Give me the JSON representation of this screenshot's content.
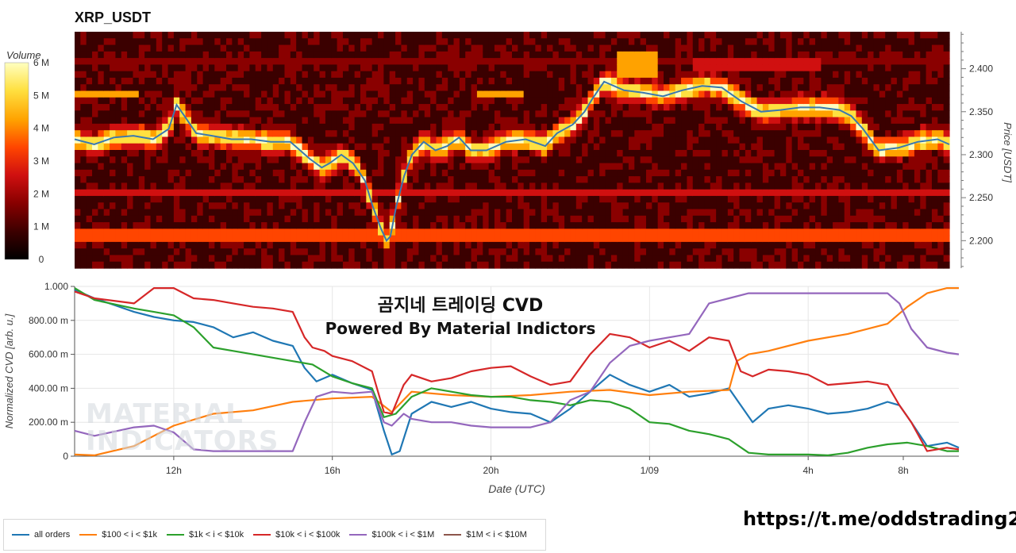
{
  "page": {
    "title": "XRP_USDT",
    "overlay_line1": "곰지네 트레이딩 CVD",
    "overlay_line2": "Powered By Material Indictors",
    "watermark_line1": "MATERIAL",
    "watermark_line2": "INDICATORS",
    "link": "https://t.me/oddstrading2"
  },
  "chart_data": [
    {
      "type": "heatmap",
      "title": "XRP_USDT",
      "ylabel": "Price [USDT]",
      "colorbar_title": "Volume",
      "colorbar_ticks": [
        "0",
        "1 M",
        "2 M",
        "3 M",
        "4 M",
        "5 M",
        "6 M"
      ],
      "colorbar_range": [
        0,
        6000000
      ],
      "ylim": [
        2.168,
        2.443
      ],
      "yticks": [
        "2.200",
        "2.250",
        "2.300",
        "2.350",
        "2.400"
      ],
      "colormap": [
        "#000000",
        "#3b0000",
        "#8a0000",
        "#d01010",
        "#ff4500",
        "#ffa200",
        "#ffe040",
        "#ffffc0"
      ],
      "price_line_color": "#3a78b0",
      "price_line": {
        "t_hours": [
          9.5,
          10.0,
          10.5,
          11.0,
          11.5,
          11.9,
          12.1,
          12.3,
          12.6,
          13.0,
          13.5,
          14.0,
          14.5,
          15.0,
          15.5,
          15.8,
          16.0,
          16.3,
          16.6,
          16.9,
          17.1,
          17.3,
          17.45,
          17.55,
          17.7,
          17.9,
          18.1,
          18.4,
          18.7,
          19.0,
          19.3,
          19.6,
          20.0,
          20.5,
          21.0,
          21.5,
          21.8,
          22.2,
          22.5,
          22.7,
          23.0,
          23.5,
          24.0,
          24.5,
          25.0,
          25.5,
          26.0,
          26.5,
          27.0,
          27.5,
          28.0,
          28.5,
          29.0,
          29.3,
          29.6,
          30.0,
          30.5,
          31.0,
          31.5,
          31.8
        ],
        "price": [
          2.318,
          2.312,
          2.32,
          2.322,
          2.318,
          2.33,
          2.358,
          2.345,
          2.325,
          2.322,
          2.318,
          2.318,
          2.315,
          2.315,
          2.295,
          2.285,
          2.29,
          2.3,
          2.29,
          2.27,
          2.24,
          2.215,
          2.2,
          2.205,
          2.24,
          2.275,
          2.3,
          2.315,
          2.305,
          2.31,
          2.32,
          2.305,
          2.305,
          2.315,
          2.318,
          2.31,
          2.325,
          2.335,
          2.35,
          2.365,
          2.385,
          2.375,
          2.372,
          2.368,
          2.375,
          2.38,
          2.378,
          2.362,
          2.35,
          2.352,
          2.355,
          2.355,
          2.352,
          2.345,
          2.33,
          2.305,
          2.308,
          2.315,
          2.318,
          2.312
        ]
      }
    },
    {
      "type": "line",
      "xlabel": "Date (UTC)",
      "ylabel": "Normalized CVD [arb. u.]",
      "xlim": [
        9.5,
        31.8
      ],
      "ylim": [
        0,
        1000
      ],
      "x_ticks": [
        {
          "t": 12,
          "label": "12h"
        },
        {
          "t": 16,
          "label": "16h"
        },
        {
          "t": 20,
          "label": "20h"
        },
        {
          "t": 24,
          "label": "1/09"
        },
        {
          "t": 28,
          "label": "4h"
        },
        {
          "t": 32,
          "label": "8h"
        }
      ],
      "y_ticks": [
        "0",
        "200.00 m",
        "400.00 m",
        "600.00 m",
        "800.00 m",
        "1.000"
      ],
      "grid": true,
      "series": [
        {
          "name": "all orders",
          "color": "#1f77b4",
          "x": [
            9.5,
            10.0,
            10.5,
            11.0,
            11.5,
            12.0,
            12.5,
            13.0,
            13.5,
            14.0,
            14.5,
            15.0,
            15.3,
            15.6,
            16.0,
            16.5,
            17.0,
            17.3,
            17.5,
            17.7,
            18.0,
            18.5,
            19.0,
            19.5,
            20.0,
            20.5,
            21.0,
            21.5,
            22.0,
            22.5,
            23.0,
            23.5,
            24.0,
            24.5,
            25.0,
            25.5,
            26.0,
            26.3,
            26.6,
            27.0,
            27.5,
            28.0,
            28.5,
            29.0,
            29.5,
            30.0,
            30.3,
            30.6,
            31.0,
            31.5,
            31.8
          ],
          "y": [
            980,
            930,
            890,
            850,
            820,
            800,
            790,
            760,
            700,
            730,
            680,
            650,
            520,
            440,
            480,
            430,
            390,
            150,
            10,
            30,
            250,
            320,
            290,
            320,
            280,
            260,
            250,
            200,
            280,
            380,
            480,
            420,
            380,
            420,
            350,
            370,
            400,
            300,
            200,
            280,
            300,
            280,
            250,
            260,
            280,
            320,
            300,
            200,
            60,
            80,
            50
          ]
        },
        {
          "name": "$100 < i < $1k",
          "color": "#ff7f0e",
          "x": [
            9.5,
            10.0,
            11.0,
            12.0,
            13.0,
            14.0,
            15.0,
            16.0,
            17.0,
            17.5,
            18.0,
            19.0,
            20.0,
            21.0,
            22.0,
            23.0,
            24.0,
            25.0,
            26.0,
            26.2,
            26.5,
            27.0,
            28.0,
            29.0,
            30.0,
            30.5,
            31.0,
            31.5,
            31.8
          ],
          "y": [
            10,
            5,
            60,
            180,
            250,
            270,
            320,
            340,
            350,
            260,
            380,
            360,
            350,
            360,
            380,
            390,
            360,
            380,
            390,
            560,
            600,
            620,
            680,
            720,
            780,
            880,
            960,
            990,
            990
          ]
        },
        {
          "name": "$1k < i < $10k",
          "color": "#2ca02c",
          "x": [
            9.5,
            10.0,
            11.0,
            11.5,
            12.0,
            12.5,
            13.0,
            13.5,
            14.0,
            15.0,
            15.5,
            16.0,
            16.5,
            17.0,
            17.3,
            17.6,
            18.0,
            18.5,
            19.0,
            19.5,
            20.0,
            20.5,
            21.0,
            21.5,
            22.0,
            22.5,
            23.0,
            23.5,
            24.0,
            24.5,
            25.0,
            25.5,
            26.0,
            26.5,
            27.0,
            28.0,
            28.5,
            29.0,
            29.5,
            30.0,
            30.5,
            31.0,
            31.5,
            31.8
          ],
          "y": [
            990,
            920,
            870,
            850,
            830,
            760,
            640,
            620,
            600,
            560,
            540,
            470,
            430,
            400,
            230,
            250,
            350,
            400,
            380,
            360,
            350,
            350,
            330,
            320,
            300,
            330,
            320,
            280,
            200,
            190,
            150,
            130,
            100,
            20,
            10,
            10,
            5,
            20,
            50,
            70,
            80,
            60,
            30,
            30
          ]
        },
        {
          "name": "$10k < i < $100k",
          "color": "#d62728",
          "x": [
            9.5,
            10.0,
            11.0,
            11.5,
            12.0,
            12.5,
            13.0,
            13.5,
            14.0,
            14.5,
            15.0,
            15.3,
            15.5,
            15.8,
            16.0,
            16.5,
            17.0,
            17.3,
            17.5,
            17.8,
            18.0,
            18.5,
            19.0,
            19.5,
            20.0,
            20.5,
            21.0,
            21.5,
            22.0,
            22.5,
            23.0,
            23.5,
            24.0,
            24.5,
            25.0,
            25.5,
            26.0,
            26.3,
            26.6,
            27.0,
            27.5,
            28.0,
            28.5,
            29.0,
            29.5,
            30.0,
            30.3,
            30.6,
            31.0,
            31.5,
            31.8
          ],
          "y": [
            970,
            930,
            900,
            990,
            990,
            930,
            920,
            900,
            880,
            870,
            850,
            700,
            640,
            620,
            590,
            560,
            500,
            260,
            250,
            420,
            480,
            440,
            460,
            500,
            520,
            530,
            470,
            420,
            440,
            600,
            720,
            700,
            640,
            680,
            620,
            700,
            680,
            500,
            470,
            510,
            500,
            480,
            420,
            430,
            440,
            420,
            300,
            200,
            30,
            50,
            40
          ]
        },
        {
          "name": "$100k < i < $1M",
          "color": "#9467bd",
          "x": [
            9.5,
            10.0,
            11.0,
            11.5,
            12.0,
            12.5,
            13.0,
            13.5,
            14.0,
            14.5,
            15.0,
            15.3,
            15.6,
            16.0,
            16.5,
            17.0,
            17.3,
            17.5,
            17.8,
            18.0,
            18.5,
            19.0,
            19.5,
            20.0,
            21.0,
            21.5,
            22.0,
            22.5,
            23.0,
            23.5,
            24.0,
            24.5,
            25.0,
            25.5,
            26.0,
            26.5,
            27.0,
            27.5,
            28.0,
            29.0,
            30.0,
            30.3,
            30.6,
            31.0,
            31.5,
            31.8
          ],
          "y": [
            150,
            120,
            170,
            180,
            140,
            40,
            30,
            30,
            30,
            30,
            30,
            200,
            350,
            380,
            370,
            380,
            200,
            180,
            250,
            220,
            200,
            200,
            180,
            170,
            170,
            200,
            330,
            380,
            550,
            650,
            680,
            700,
            720,
            900,
            930,
            960,
            960,
            960,
            960,
            960,
            960,
            900,
            750,
            640,
            610,
            600
          ]
        },
        {
          "name": "$1M < i < $10M",
          "color": "#8c564b",
          "x": [],
          "y": []
        }
      ]
    }
  ]
}
